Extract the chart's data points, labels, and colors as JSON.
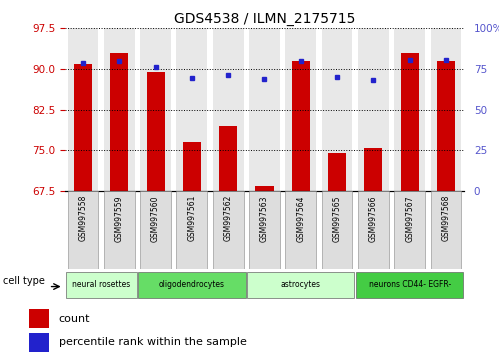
{
  "title": "GDS4538 / ILMN_2175715",
  "samples": [
    "GSM997558",
    "GSM997559",
    "GSM997560",
    "GSM997561",
    "GSM997562",
    "GSM997563",
    "GSM997564",
    "GSM997565",
    "GSM997566",
    "GSM997567",
    "GSM997568"
  ],
  "count_values": [
    91.0,
    93.0,
    89.5,
    76.5,
    79.5,
    68.5,
    91.5,
    74.5,
    75.5,
    93.0,
    91.5
  ],
  "percentile_values": [
    79.0,
    80.0,
    76.0,
    69.5,
    71.5,
    68.8,
    80.0,
    70.0,
    68.5,
    80.5,
    80.5
  ],
  "cell_types": [
    {
      "label": "neural rosettes",
      "start": 0,
      "end": 2,
      "color": "#ccffcc"
    },
    {
      "label": "oligodendrocytes",
      "start": 2,
      "end": 5,
      "color": "#66dd66"
    },
    {
      "label": "astrocytes",
      "start": 5,
      "end": 8,
      "color": "#ccffcc"
    },
    {
      "label": "neurons CD44- EGFR-",
      "start": 8,
      "end": 11,
      "color": "#44cc44"
    }
  ],
  "ylim_left": [
    67.5,
    97.5
  ],
  "ylim_right": [
    0,
    100
  ],
  "yticks_left": [
    67.5,
    75.0,
    82.5,
    90.0,
    97.5
  ],
  "yticks_right": [
    0,
    25,
    50,
    75,
    100
  ],
  "bar_color": "#cc0000",
  "marker_color": "#2222cc",
  "bar_bg_color": "#e8e8e8",
  "legend_count": "count",
  "legend_percentile": "percentile rank within the sample",
  "xlabel_cell_type": "cell type"
}
